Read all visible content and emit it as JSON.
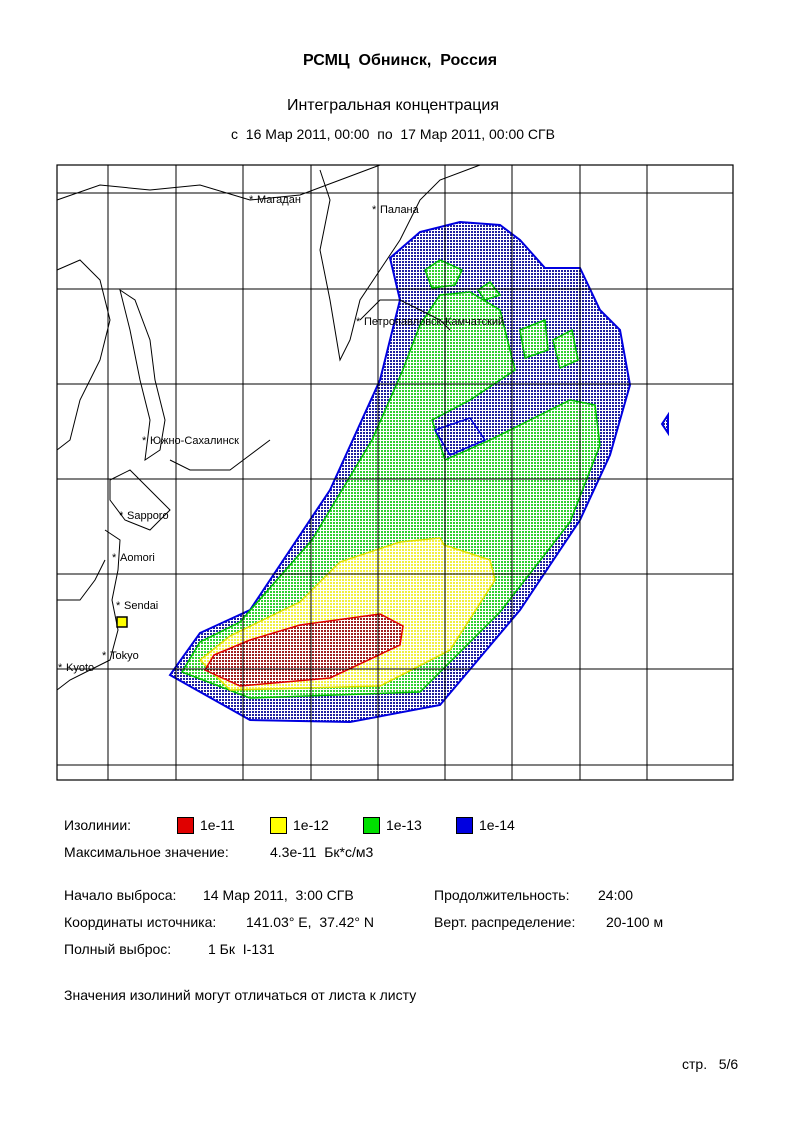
{
  "header": {
    "title": "РСМЦ  Обнинск,  Россия",
    "subtitle": "Интегральная концентрация",
    "period": "с  16 Мар 2011, 00:00  по  17 Мар 2011, 00:00 СГВ"
  },
  "map": {
    "cities": [
      {
        "label": "Магадан"
      },
      {
        "label": "Палана"
      },
      {
        "label": "Петропавловск-Камчатский"
      },
      {
        "label": "Южно-Сахалинск"
      },
      {
        "label": "Sapporo"
      },
      {
        "label": "Aomori"
      },
      {
        "label": "Sendai"
      },
      {
        "label": "Tokyo"
      },
      {
        "label": "Kyoto"
      }
    ]
  },
  "legend": {
    "title": "Изолинии:",
    "items": [
      {
        "label": "1e-11",
        "color": "#e00000"
      },
      {
        "label": "1e-12",
        "color": "#ffff00"
      },
      {
        "label": "1e-13",
        "color": "#00e000"
      },
      {
        "label": "1e-14",
        "color": "#0000e0"
      }
    ]
  },
  "max_value": {
    "label": "Максимальное значение:",
    "value": "4.3e-11  Бк*с/м3"
  },
  "info": {
    "release_start": {
      "label": "Начало выброса:",
      "value": "14 Мар 2011,  3:00 СГВ"
    },
    "duration": {
      "label": "Продолжительность:",
      "value": "24:00"
    },
    "source_coords": {
      "label": "Координаты источника:",
      "value": "141.03° E,  37.42° N"
    },
    "vertical": {
      "label": "Верт. распределение:",
      "value": "20-100 м"
    },
    "total_release": {
      "label": "Полный выброс:",
      "value": "1 Бк  I-131"
    }
  },
  "note": "Значения изолиний могут отличаться от листа к листу",
  "footer": {
    "page": "стр.   5/6"
  }
}
